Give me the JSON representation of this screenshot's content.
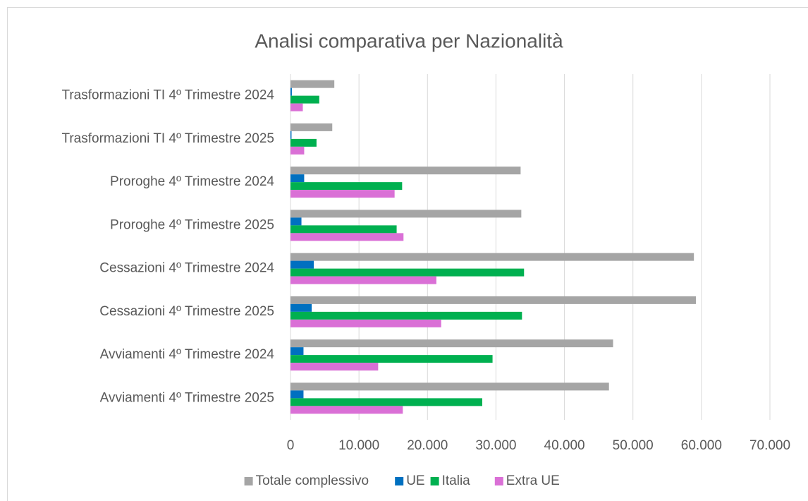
{
  "chart_data": {
    "type": "bar",
    "orientation": "horizontal",
    "title": "Analisi comparativa per Nazionalità",
    "categories": [
      "Trasformazioni TI 4º Trimestre 2024",
      "Trasformazioni TI 4º Trimestre 2025",
      "Proroghe 4º Trimestre 2024",
      "Proroghe 4º Trimestre 2025",
      "Cessazioni 4º Trimestre 2024",
      "Cessazioni 4º Trimestre 2025",
      "Avviamenti 4º Trimestre 2024",
      "Avviamenti 4º Trimestre 2025"
    ],
    "series": [
      {
        "name": "Totale complessivo",
        "color": "#a5a5a5",
        "values": [
          6400,
          6100,
          33600,
          33700,
          58900,
          59200,
          47100,
          46500
        ]
      },
      {
        "name": "UE",
        "color": "#0070c0",
        "values": [
          200,
          150,
          2000,
          1600,
          3400,
          3100,
          1900,
          1900
        ]
      },
      {
        "name": "Italia",
        "color": "#00b050",
        "values": [
          4200,
          3800,
          16300,
          15500,
          34100,
          33800,
          29500,
          28000
        ]
      },
      {
        "name": "Extra UE",
        "color": "#da70d6",
        "values": [
          1800,
          2000,
          15200,
          16500,
          21300,
          22000,
          12800,
          16400
        ]
      }
    ],
    "xlim": [
      0,
      70000
    ],
    "xticks": [
      0,
      {
        "value": 10000,
        "label": "10.000"
      },
      {
        "value": 20000,
        "label": "20.000"
      },
      {
        "value": 30000,
        "label": "30.000"
      },
      {
        "value": 40000,
        "label": "40.000"
      },
      {
        "value": 50000,
        "label": "50.000"
      },
      {
        "value": 60000,
        "label": "60.000"
      },
      {
        "value": 70000,
        "label": "70.000"
      }
    ],
    "grid": true,
    "legend": "bottom"
  }
}
